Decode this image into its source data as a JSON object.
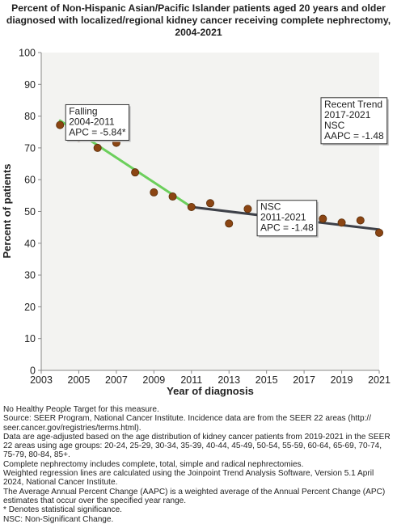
{
  "title_lines": [
    "Percent of Non-Hispanic Asian/Pacific Islander patients aged 20 years and older",
    "diagnosed with localized/regional kidney cancer receiving complete nephrectomy,",
    "2004-2021"
  ],
  "chart_data": {
    "type": "scatter",
    "xlabel": "Year of diagnosis",
    "ylabel": "Percent of patients",
    "xlim": [
      2003,
      2021
    ],
    "ylim": [
      0,
      100
    ],
    "x_ticks": [
      2003,
      2005,
      2007,
      2009,
      2011,
      2013,
      2015,
      2017,
      2019,
      2021
    ],
    "y_ticks": [
      0,
      10,
      20,
      30,
      40,
      50,
      60,
      70,
      80,
      90,
      100
    ],
    "grid": false,
    "points": [
      {
        "x": 2004,
        "y": 77.2
      },
      {
        "x": 2005,
        "y": 73.1
      },
      {
        "x": 2006,
        "y": 70.0
      },
      {
        "x": 2007,
        "y": 71.6
      },
      {
        "x": 2008,
        "y": 62.3
      },
      {
        "x": 2009,
        "y": 56.0
      },
      {
        "x": 2010,
        "y": 54.7
      },
      {
        "x": 2011,
        "y": 51.4
      },
      {
        "x": 2012,
        "y": 52.6
      },
      {
        "x": 2013,
        "y": 46.2
      },
      {
        "x": 2014,
        "y": 50.8
      },
      {
        "x": 2015,
        "y": 49.3
      },
      {
        "x": 2016,
        "y": 47.0
      },
      {
        "x": 2017,
        "y": 43.8
      },
      {
        "x": 2018,
        "y": 47.7
      },
      {
        "x": 2019,
        "y": 46.5
      },
      {
        "x": 2020,
        "y": 47.2
      },
      {
        "x": 2021,
        "y": 43.3
      }
    ],
    "trend_segments": [
      {
        "x": [
          2004,
          2011
        ],
        "y": [
          78.6,
          51.4
        ],
        "color": "#6ccf5c"
      },
      {
        "x": [
          2011,
          2021
        ],
        "y": [
          51.4,
          44.3
        ],
        "color": "#3d4048"
      }
    ],
    "point_color": "#8b4513",
    "annotations": [
      {
        "id": "falling",
        "lines": [
          "Falling",
          "2004-2011",
          "APC = -5.84*"
        ],
        "anchor_x": 2004.3,
        "anchor_y": 83.6
      },
      {
        "id": "nsc",
        "lines": [
          "NSC",
          "2011-2021",
          "APC = -1.48"
        ],
        "anchor_x": 2014.5,
        "anchor_y": 53.5
      },
      {
        "id": "recent",
        "lines": [
          "Recent Trend",
          "2017-2021",
          "NSC",
          "AAPC = -1.48"
        ],
        "anchor_x": 2017.9,
        "anchor_y": 85.8
      }
    ]
  },
  "notes": [
    "No Healthy People Target for this measure.",
    "Source: SEER Program, National Cancer Institute. Incidence data are from the SEER 22 areas (http://",
    "seer.cancer.gov/registries/terms.html).",
    "Data are age-adjusted based on the age distribution of kidney cancer patients from 2019-2021 in the SEER",
    "22 areas using age groups: 20-24, 25-29, 30-34, 35-39, 40-44, 45-49, 50-54, 55-59, 60-64, 65-69, 70-74,",
    "75-79, 80-84, 85+.",
    "Complete nephrectomy includes complete, total, simple and radical nephrectomies.",
    "Weighted regression lines are calculated using the Joinpoint Trend Analysis Software, Version 5.1 April",
    "2024, National Cancer Institute.",
    "The Average Annual Percent Change (AAPC) is a weighted average of the Annual Percent Change (APC)",
    "estimates that occur over the specified year range.",
    "* Denotes statistical significance.",
    "NSC: Non-Significant Change."
  ]
}
